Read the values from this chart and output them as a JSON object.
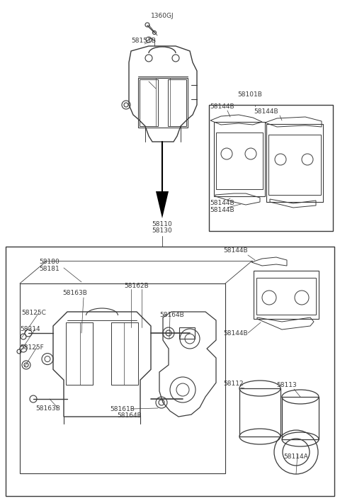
{
  "bg_color": "#ffffff",
  "line_color": "#3a3a3a",
  "text_color": "#3a3a3a",
  "font_size": 6.5,
  "fig_width": 4.8,
  "fig_height": 7.07,
  "dpi": 100,
  "labels": {
    "bolt_top": "1360GJ",
    "spring": "58151B",
    "caliper_upper": [
      "58110",
      "58130"
    ],
    "pad_box": "58101B",
    "pad_top_left": "58144B",
    "pad_top_right": "58144B",
    "pad_bot_left": "58144B",
    "pad_bot_right": "58144B",
    "lower_labels": [
      "58180",
      "58181",
      "58163B",
      "58125C",
      "58314",
      "58125F",
      "58163B",
      "58162B",
      "58164B",
      "58161B",
      "58164B",
      "58112",
      "58113",
      "58114A",
      "58144B",
      "58144B"
    ]
  }
}
